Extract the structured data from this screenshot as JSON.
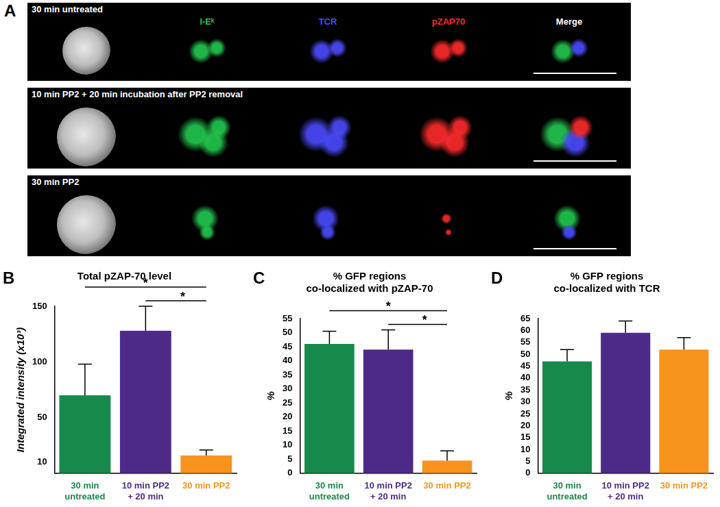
{
  "panel_a": {
    "label": "A",
    "channels": [
      "I-Eᵏ",
      "TCR",
      "pZAP70",
      "Merge"
    ],
    "channel_colors": [
      "#22c84f",
      "#4b4bff",
      "#ff2b2b",
      "#ffffff"
    ],
    "rows": [
      {
        "title": "30 min untreated"
      },
      {
        "title": "10 min PP2 + 20 min incubation after PP2 removal"
      },
      {
        "title": "30 min PP2"
      }
    ]
  },
  "chart_data": [
    {
      "panel": "B",
      "type": "bar",
      "title": "Total pZAP-70 level",
      "y_label": "Integrated intensity (x10³)",
      "categories": [
        "30 min\nuntreated",
        "10 min PP2\n+ 20 min",
        "30 min PP2"
      ],
      "values": [
        70,
        128,
        16
      ],
      "errors": [
        28,
        22,
        5
      ],
      "colors": [
        "#168a4a",
        "#4e2a88",
        "#f7941d"
      ],
      "ylim": [
        0,
        150
      ],
      "yticks": [
        10,
        50,
        100,
        150
      ],
      "grid": false,
      "significance": [
        {
          "between": [
            0,
            2
          ],
          "label": "*"
        },
        {
          "between": [
            1,
            2
          ],
          "label": "*"
        }
      ]
    },
    {
      "panel": "C",
      "type": "bar",
      "title": "% GFP regions\nco-localized with pZAP-70",
      "y_label": "%",
      "categories": [
        "30 min\nuntreated",
        "10 min PP2\n+ 20 min",
        "30 min PP2"
      ],
      "values": [
        46,
        44,
        4.5
      ],
      "errors": [
        4.5,
        7,
        3.5
      ],
      "colors": [
        "#168a4a",
        "#4e2a88",
        "#f7941d"
      ],
      "ylim": [
        0,
        55
      ],
      "yticks": [
        0,
        5,
        10,
        15,
        20,
        25,
        30,
        35,
        40,
        45,
        50,
        55
      ],
      "grid": false,
      "significance": [
        {
          "between": [
            0,
            2
          ],
          "label": "*"
        },
        {
          "between": [
            1,
            2
          ],
          "label": "*"
        }
      ]
    },
    {
      "panel": "D",
      "type": "bar",
      "title": "% GFP regions\nco-localized with TCR",
      "y_label": "%",
      "categories": [
        "30 min\nuntreated",
        "10 min PP2\n+ 20 min",
        "30 min PP2"
      ],
      "values": [
        47,
        59,
        52
      ],
      "errors": [
        5,
        5,
        5
      ],
      "colors": [
        "#168a4a",
        "#4e2a88",
        "#f7941d"
      ],
      "ylim": [
        0,
        65
      ],
      "yticks": [
        0,
        5,
        10,
        15,
        20,
        25,
        30,
        35,
        40,
        45,
        50,
        55,
        60,
        65
      ],
      "grid": false
    }
  ]
}
